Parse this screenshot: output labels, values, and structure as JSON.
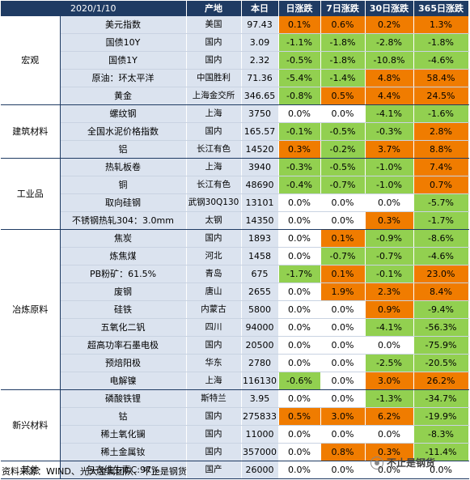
{
  "header": {
    "date": "2020/1/10",
    "place": "产地",
    "current": "本日",
    "d1": "日涨跌",
    "d7": "7日涨跌",
    "d30": "30日涨跌",
    "d365": "365日涨跌"
  },
  "groups": [
    {
      "category": "宏观",
      "rows": [
        {
          "name": "美元指数",
          "place": "美国",
          "value": "97.43",
          "d1": "0.1%",
          "d7": "0.6%",
          "d30": "0.2%",
          "d365": "1.3%",
          "c": [
            "o",
            "o",
            "o",
            "o"
          ]
        },
        {
          "name": "国债10Y",
          "place": "国内",
          "value": "3.09",
          "d1": "-1.1%",
          "d7": "-1.8%",
          "d30": "-2.8%",
          "d365": "-1.8%",
          "c": [
            "g",
            "g",
            "g",
            "g"
          ]
        },
        {
          "name": "国债1Y",
          "place": "国内",
          "value": "2.32",
          "d1": "-0.5%",
          "d7": "-1.8%",
          "d30": "-10.8%",
          "d365": "-4.6%",
          "c": [
            "g",
            "g",
            "g",
            "g"
          ]
        },
        {
          "name": "原油：环太平洋",
          "place": "中国胜利",
          "value": "71.36",
          "d1": "-5.4%",
          "d7": "-1.4%",
          "d30": "4.8%",
          "d365": "58.4%",
          "c": [
            "g",
            "g",
            "o",
            "o"
          ]
        },
        {
          "name": "黄金",
          "place": "上海金交所",
          "value": "346.65",
          "d1": "-0.8%",
          "d7": "0.5%",
          "d30": "4.4%",
          "d365": "24.5%",
          "c": [
            "g",
            "o",
            "o",
            "o"
          ]
        }
      ]
    },
    {
      "category": "建筑材料",
      "rows": [
        {
          "name": "螺纹钢",
          "place": "上海",
          "value": "3750",
          "d1": "0.0%",
          "d7": "0.0%",
          "d30": "-4.1%",
          "d365": "-1.6%",
          "c": [
            "w",
            "w",
            "g",
            "g"
          ]
        },
        {
          "name": "全国水泥价格指数",
          "place": "国内",
          "value": "165.57",
          "d1": "-0.1%",
          "d7": "-0.5%",
          "d30": "-0.3%",
          "d365": "2.8%",
          "c": [
            "g",
            "g",
            "g",
            "o"
          ]
        },
        {
          "name": "铝",
          "place": "长江有色",
          "value": "14520",
          "d1": "0.3%",
          "d7": "-0.2%",
          "d30": "3.7%",
          "d365": "8.8%",
          "c": [
            "o",
            "g",
            "o",
            "o"
          ]
        }
      ]
    },
    {
      "category": "工业品",
      "rows": [
        {
          "name": "热轧板卷",
          "place": "上海",
          "value": "3940",
          "d1": "-0.3%",
          "d7": "-0.5%",
          "d30": "-1.0%",
          "d365": "7.4%",
          "c": [
            "g",
            "g",
            "g",
            "o"
          ]
        },
        {
          "name": "铜",
          "place": "长江有色",
          "value": "48690",
          "d1": "-0.4%",
          "d7": "-0.7%",
          "d30": "-1.0%",
          "d365": "0.7%",
          "c": [
            "g",
            "g",
            "g",
            "o"
          ]
        },
        {
          "name": "取向硅钢",
          "place": "武钢30Q130",
          "value": "13101",
          "d1": "0.0%",
          "d7": "0.0%",
          "d30": "0.0%",
          "d365": "-5.7%",
          "c": [
            "w",
            "w",
            "w",
            "g"
          ]
        },
        {
          "name": "不锈钢热轧304：3.0mm",
          "place": "太钢",
          "value": "14350",
          "d1": "0.0%",
          "d7": "0.0%",
          "d30": "0.3%",
          "d365": "-1.7%",
          "c": [
            "w",
            "w",
            "o",
            "g"
          ]
        }
      ]
    },
    {
      "category": "冶炼原料",
      "rows": [
        {
          "name": "焦炭",
          "place": "国内",
          "value": "1893",
          "d1": "0.0%",
          "d7": "0.1%",
          "d30": "-0.9%",
          "d365": "-8.6%",
          "c": [
            "w",
            "o",
            "g",
            "g"
          ]
        },
        {
          "name": "炼焦煤",
          "place": "河北",
          "value": "1458",
          "d1": "0.0%",
          "d7": "-0.7%",
          "d30": "-0.7%",
          "d365": "-4.6%",
          "c": [
            "w",
            "g",
            "g",
            "g"
          ]
        },
        {
          "name": "PB粉矿：61.5%",
          "place": "青岛",
          "value": "675",
          "d1": "-1.7%",
          "d7": "0.1%",
          "d30": "-0.1%",
          "d365": "23.0%",
          "c": [
            "g",
            "o",
            "g",
            "o"
          ]
        },
        {
          "name": "废钢",
          "place": "唐山",
          "value": "2655",
          "d1": "0.0%",
          "d7": "1.9%",
          "d30": "2.3%",
          "d365": "8.4%",
          "c": [
            "w",
            "o",
            "o",
            "o"
          ]
        },
        {
          "name": "硅铁",
          "place": "内蒙古",
          "value": "5800",
          "d1": "0.0%",
          "d7": "0.0%",
          "d30": "0.9%",
          "d365": "-9.4%",
          "c": [
            "w",
            "w",
            "o",
            "g"
          ]
        },
        {
          "name": "五氧化二钒",
          "place": "四川",
          "value": "94000",
          "d1": "0.0%",
          "d7": "0.0%",
          "d30": "-4.1%",
          "d365": "-56.3%",
          "c": [
            "w",
            "w",
            "g",
            "g"
          ]
        },
        {
          "name": "超高功率石墨电极",
          "place": "国内",
          "value": "20500",
          "d1": "0.0%",
          "d7": "0.0%",
          "d30": "0.0%",
          "d365": "-75.9%",
          "c": [
            "w",
            "w",
            "w",
            "g"
          ]
        },
        {
          "name": "预焙阳极",
          "place": "华东",
          "value": "2780",
          "d1": "0.0%",
          "d7": "0.0%",
          "d30": "-2.5%",
          "d365": "-20.5%",
          "c": [
            "w",
            "w",
            "g",
            "g"
          ]
        },
        {
          "name": "电解镍",
          "place": "上海",
          "value": "116130",
          "d1": "-0.6%",
          "d7": "0.0%",
          "d30": "3.0%",
          "d365": "26.2%",
          "c": [
            "g",
            "w",
            "o",
            "o"
          ]
        }
      ]
    },
    {
      "category": "新兴材料",
      "rows": [
        {
          "name": "磷酸铁锂",
          "place": "斯特兰",
          "value": "3.95",
          "d1": "0.0%",
          "d7": "0.0%",
          "d30": "-1.3%",
          "d365": "-34.7%",
          "c": [
            "w",
            "w",
            "g",
            "g"
          ]
        },
        {
          "name": "钴",
          "place": "国内",
          "value": "275833",
          "d1": "0.5%",
          "d7": "3.0%",
          "d30": "6.2%",
          "d365": "-19.9%",
          "c": [
            "o",
            "o",
            "o",
            "g"
          ]
        },
        {
          "name": "稀土氧化镧",
          "place": "国内",
          "value": "11000",
          "d1": "0.0%",
          "d7": "0.0%",
          "d30": "0.0%",
          "d365": "-8.3%",
          "c": [
            "w",
            "w",
            "w",
            "g"
          ]
        },
        {
          "name": "稀土金属钕",
          "place": "国内",
          "value": "357000",
          "d1": "0.0%",
          "d7": "0.8%",
          "d30": "0.3%",
          "d365": "-11.4%",
          "c": [
            "w",
            "o",
            "o",
            "g"
          ]
        }
      ]
    },
    {
      "category": "其他",
      "rows": [
        {
          "name": "包衣维生素C:97%",
          "place": "国产",
          "value": "26000",
          "d1": "0.0%",
          "d7": "0.0%",
          "d30": "0.0%",
          "d365": "0.0%",
          "c": [
            "w",
            "w",
            "w",
            "w"
          ]
        }
      ]
    }
  ],
  "source": "资料来源：WIND、光大金属团队、不止是钢货",
  "watermark": "不止是钢货"
}
